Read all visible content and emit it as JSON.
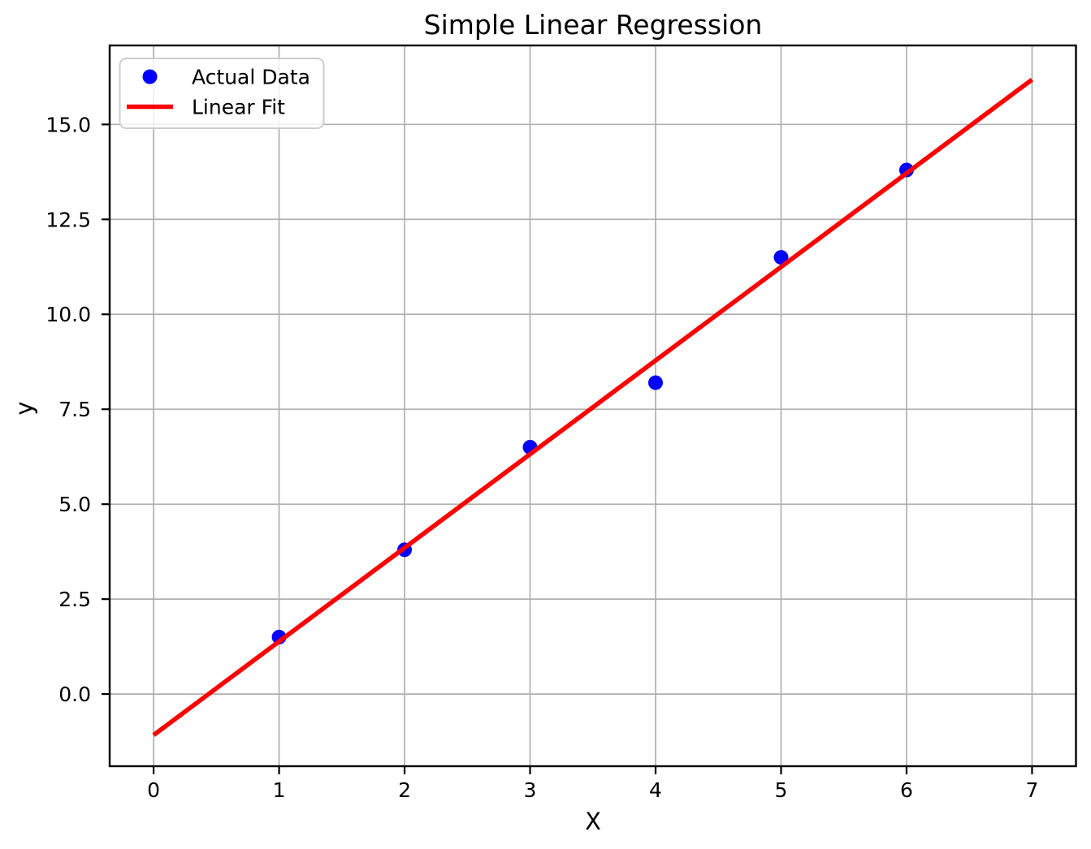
{
  "figure": {
    "background": "#ffffff"
  },
  "chart_data": {
    "type": "scatter",
    "title": "Simple Linear Regression",
    "xlabel": "X",
    "ylabel": "y",
    "xlim": [
      -0.35,
      7.35
    ],
    "ylim": [
      -1.9,
      17.08
    ],
    "xticks": [
      0,
      1,
      2,
      3,
      4,
      5,
      6,
      7
    ],
    "xtick_labels": [
      "0",
      "1",
      "2",
      "3",
      "4",
      "5",
      "6",
      "7"
    ],
    "yticks": [
      0.0,
      2.5,
      5.0,
      7.5,
      10.0,
      12.5,
      15.0
    ],
    "ytick_labels": [
      "0.0",
      "2.5",
      "5.0",
      "7.5",
      "10.0",
      "12.5",
      "15.0"
    ],
    "grid": true,
    "grid_color": "#b0b0b0",
    "axis_color": "#000000",
    "legend": {
      "location": "upper left",
      "border_color": "#cccccc",
      "background": "rgba(255,255,255,0.8)"
    },
    "series": [
      {
        "name": "Actual Data",
        "type": "scatter",
        "marker": "circle",
        "color": "#0000ff",
        "x": [
          1,
          2,
          3,
          4,
          5,
          6
        ],
        "y": [
          1.5,
          3.8,
          6.5,
          8.2,
          11.5,
          13.8
        ]
      },
      {
        "name": "Linear Fit",
        "type": "line",
        "color": "#ff0000",
        "slope": 2.466,
        "intercept": -1.081,
        "x_range": [
          0,
          7
        ]
      }
    ]
  }
}
